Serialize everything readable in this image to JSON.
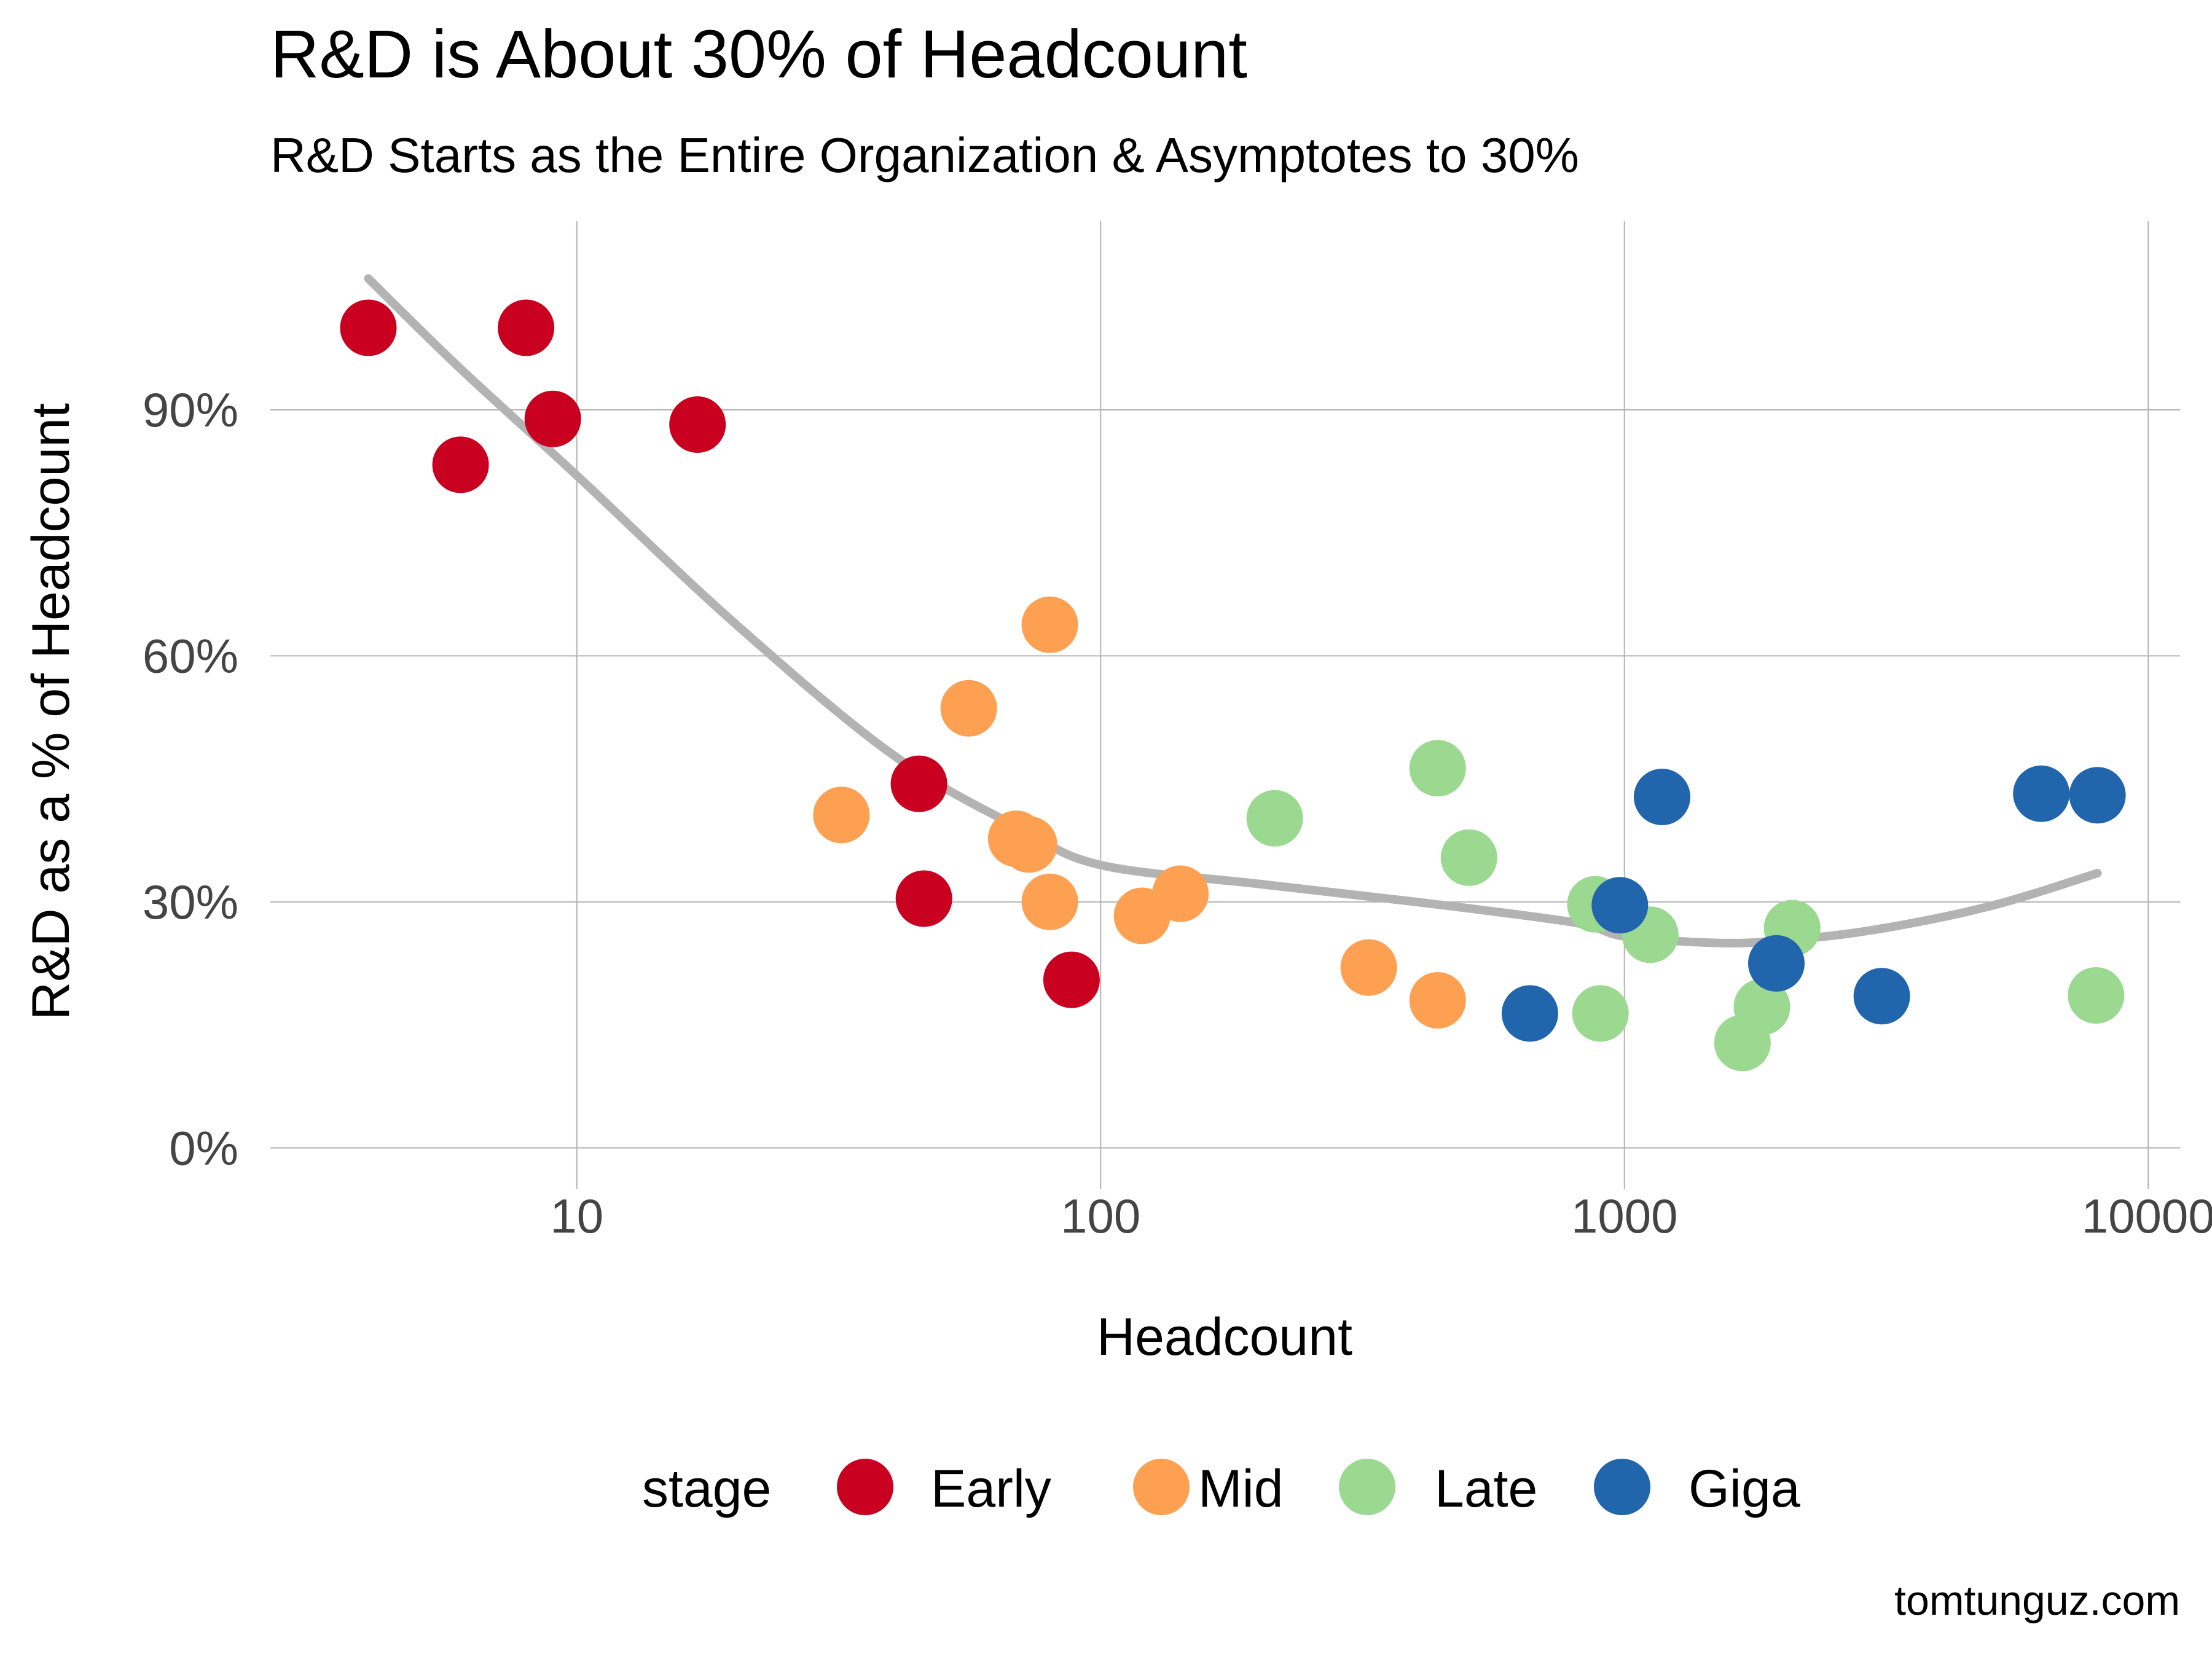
{
  "chart_data": {
    "type": "scatter",
    "title": "R&D is About 30% of Headcount",
    "subtitle": "R&D Starts as the Entire Organization & Asymptotes to 30%",
    "xlabel": "Headcount",
    "ylabel": "R&D as a % of Headcount",
    "x_scale": "log10",
    "xlim": [
      2.6,
      11500
    ],
    "ylim": [
      -0.05,
      1.13
    ],
    "x_ticks": [
      {
        "value": 10,
        "label": "10"
      },
      {
        "value": 100,
        "label": "100"
      },
      {
        "value": 1000,
        "label": "1000"
      },
      {
        "value": 10000,
        "label": "10000"
      }
    ],
    "y_ticks": [
      {
        "value": 0,
        "label": "0%"
      },
      {
        "value": 0.3,
        "label": "30%"
      },
      {
        "value": 0.6,
        "label": "60%"
      },
      {
        "value": 0.9,
        "label": "90%"
      }
    ],
    "grid": true,
    "legend": {
      "title": "stage",
      "placement": "bottom",
      "entries": [
        {
          "name": "Early",
          "color": "#ca0020"
        },
        {
          "name": "Mid",
          "color": "#fda052"
        },
        {
          "name": "Late",
          "color": "#9bd890"
        },
        {
          "name": "Giga",
          "color": "#2166ac"
        }
      ]
    },
    "series": [
      {
        "name": "Early",
        "color": "#ca0020",
        "points": [
          {
            "x": 4,
            "y": 1.0
          },
          {
            "x": 6,
            "y": 0.833
          },
          {
            "x": 8,
            "y": 1.0
          },
          {
            "x": 9,
            "y": 0.889
          },
          {
            "x": 17,
            "y": 0.882
          },
          {
            "x": 45,
            "y": 0.444
          },
          {
            "x": 46,
            "y": 0.304
          },
          {
            "x": 88,
            "y": 0.205
          }
        ]
      },
      {
        "name": "Mid",
        "color": "#fda052",
        "points": [
          {
            "x": 32,
            "y": 0.406
          },
          {
            "x": 56,
            "y": 0.536
          },
          {
            "x": 69,
            "y": 0.377
          },
          {
            "x": 73,
            "y": 0.37
          },
          {
            "x": 80,
            "y": 0.3
          },
          {
            "x": 80,
            "y": 0.638
          },
          {
            "x": 120,
            "y": 0.283
          },
          {
            "x": 142,
            "y": 0.31
          },
          {
            "x": 325,
            "y": 0.22
          },
          {
            "x": 440,
            "y": 0.18
          }
        ]
      },
      {
        "name": "Late",
        "color": "#9bd890",
        "points": [
          {
            "x": 215,
            "y": 0.402
          },
          {
            "x": 440,
            "y": 0.463
          },
          {
            "x": 505,
            "y": 0.354
          },
          {
            "x": 880,
            "y": 0.297
          },
          {
            "x": 900,
            "y": 0.164
          },
          {
            "x": 1120,
            "y": 0.26
          },
          {
            "x": 1680,
            "y": 0.128
          },
          {
            "x": 1830,
            "y": 0.172
          },
          {
            "x": 2090,
            "y": 0.268
          },
          {
            "x": 7950,
            "y": 0.186
          }
        ]
      },
      {
        "name": "Giga",
        "color": "#2166ac",
        "points": [
          {
            "x": 660,
            "y": 0.164
          },
          {
            "x": 980,
            "y": 0.296
          },
          {
            "x": 1180,
            "y": 0.428
          },
          {
            "x": 1950,
            "y": 0.225
          },
          {
            "x": 3100,
            "y": 0.185
          },
          {
            "x": 6250,
            "y": 0.432
          },
          {
            "x": 8000,
            "y": 0.43
          }
        ]
      }
    ],
    "trend": {
      "type": "smooth",
      "color": "#b3b3b3",
      "points": [
        {
          "x": 4,
          "y": 1.06
        },
        {
          "x": 6,
          "y": 0.95
        },
        {
          "x": 10,
          "y": 0.82
        },
        {
          "x": 20,
          "y": 0.64
        },
        {
          "x": 40,
          "y": 0.48
        },
        {
          "x": 70,
          "y": 0.39
        },
        {
          "x": 100,
          "y": 0.345
        },
        {
          "x": 200,
          "y": 0.322
        },
        {
          "x": 400,
          "y": 0.3
        },
        {
          "x": 800,
          "y": 0.275
        },
        {
          "x": 1000,
          "y": 0.258
        },
        {
          "x": 1500,
          "y": 0.25
        },
        {
          "x": 2000,
          "y": 0.253
        },
        {
          "x": 3000,
          "y": 0.266
        },
        {
          "x": 5000,
          "y": 0.295
        },
        {
          "x": 8000,
          "y": 0.335
        }
      ]
    }
  },
  "caption": "tomtunguz.com"
}
